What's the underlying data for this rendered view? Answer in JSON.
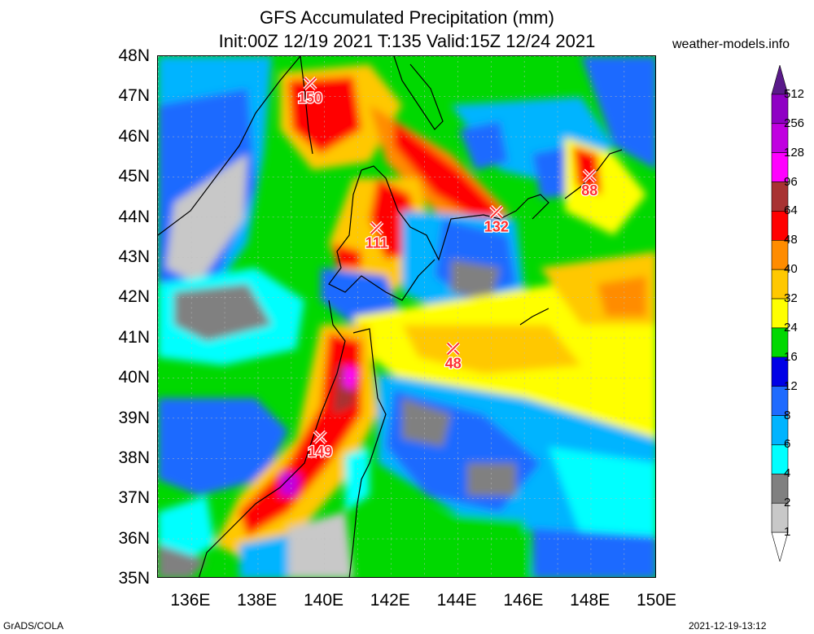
{
  "title_line1": "GFS Accumulated Precipitation (mm)",
  "title_line2": "Init:00Z 12/19 2021 T:135 Valid:15Z 12/24 2021",
  "site": "weather-models.info",
  "credit": "GrADS/COLA",
  "timestamp": "2021-12-19-13:12",
  "lat_labels": [
    "48N",
    "47N",
    "46N",
    "45N",
    "44N",
    "43N",
    "42N",
    "41N",
    "40N",
    "39N",
    "38N",
    "37N",
    "36N",
    "35N"
  ],
  "lon_labels": [
    "136E",
    "138E",
    "140E",
    "142E",
    "144E",
    "146E",
    "148E",
    "150E"
  ],
  "legend": {
    "levels": [
      "512",
      "256",
      "128",
      "96",
      "64",
      "48",
      "40",
      "32",
      "24",
      "16",
      "12",
      "8",
      "6",
      "4",
      "2",
      "1"
    ],
    "colors": [
      "#5a1a8a",
      "#8f00c4",
      "#c000e0",
      "#ff00ff",
      "#a83232",
      "#ff0000",
      "#ff8c00",
      "#ffc800",
      "#ffff00",
      "#00d800",
      "#0000e6",
      "#1e6bff",
      "#00b4ff",
      "#00ffff",
      "#808080",
      "#c8c8c8",
      "#ffffff"
    ]
  },
  "markers": [
    {
      "label": "150",
      "lon": 139.6,
      "lat": 47.3
    },
    {
      "label": "111",
      "lon": 141.6,
      "lat": 43.7
    },
    {
      "label": "132",
      "lon": 145.2,
      "lat": 44.1
    },
    {
      "label": "88",
      "lon": 148.0,
      "lat": 45.0
    },
    {
      "label": "48",
      "lon": 143.9,
      "lat": 40.7
    },
    {
      "label": "149",
      "lon": 139.9,
      "lat": 38.5
    }
  ]
}
